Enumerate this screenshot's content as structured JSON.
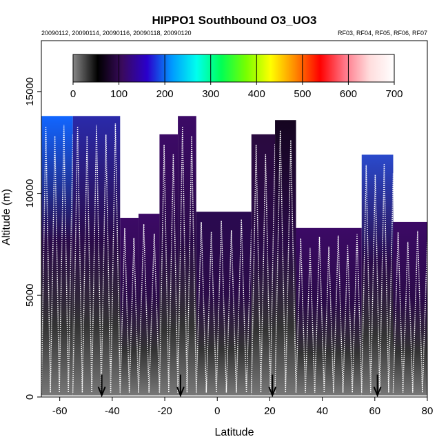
{
  "chart_data": {
    "type": "heatmap",
    "title": "HIPPO1 Southbound O3_UO3",
    "subtitle_left": "20090112, 20090114, 20090116, 20090118, 20090120",
    "subtitle_right": "RF03, RF04, RF05, RF06, RF07",
    "xlabel": "Latitude",
    "ylabel": "Altitude (m)",
    "xlim": [
      -67,
      80
    ],
    "ylim": [
      0,
      17500
    ],
    "xticks": [
      -60,
      -40,
      -20,
      0,
      20,
      40,
      60,
      80
    ],
    "yticks": [
      0,
      5000,
      10000,
      15000
    ],
    "colorbar": {
      "ticks": [
        0,
        100,
        200,
        300,
        400,
        500,
        600,
        700
      ],
      "range": [
        0,
        700
      ],
      "colors": [
        "#888888",
        "#000000",
        "#3a0a5e",
        "#2a00cc",
        "#0099ff",
        "#00ffee",
        "#00ff55",
        "#77ff00",
        "#ffff00",
        "#ff8800",
        "#ff0000",
        "#ff7788",
        "#ffdddd",
        "#ffffff"
      ]
    },
    "arrows_latitude": [
      -44,
      -14,
      21,
      61
    ],
    "profiles": [
      {
        "lat0": -67,
        "lat1": -55,
        "top": 13800,
        "tint": "#1166ff"
      },
      {
        "lat0": -55,
        "lat1": -37,
        "top": 13800,
        "tint": "#2a2aaa"
      },
      {
        "lat0": -37,
        "lat1": -30,
        "top": 8800,
        "tint": "#3c0a66"
      },
      {
        "lat0": -30,
        "lat1": -22,
        "top": 9000,
        "tint": "#3c0a66"
      },
      {
        "lat0": -22,
        "lat1": -15,
        "top": 12900,
        "tint": "#3c0a66"
      },
      {
        "lat0": -15,
        "lat1": -8,
        "top": 13800,
        "tint": "#3c0a66"
      },
      {
        "lat0": -8,
        "lat1": 13,
        "top": 9100,
        "tint": "#2a0a50"
      },
      {
        "lat0": 13,
        "lat1": 22,
        "top": 12900,
        "tint": "#2a0a40"
      },
      {
        "lat0": 22,
        "lat1": 30,
        "top": 13600,
        "tint": "#150520"
      },
      {
        "lat0": 30,
        "lat1": 55,
        "top": 8300,
        "tint": "#3c0a66"
      },
      {
        "lat0": 55,
        "lat1": 67,
        "top": 11900,
        "tint": "#2a4acc"
      },
      {
        "lat0": 67,
        "lat1": 80,
        "top": 8600,
        "tint": "#3c0a66"
      }
    ]
  }
}
